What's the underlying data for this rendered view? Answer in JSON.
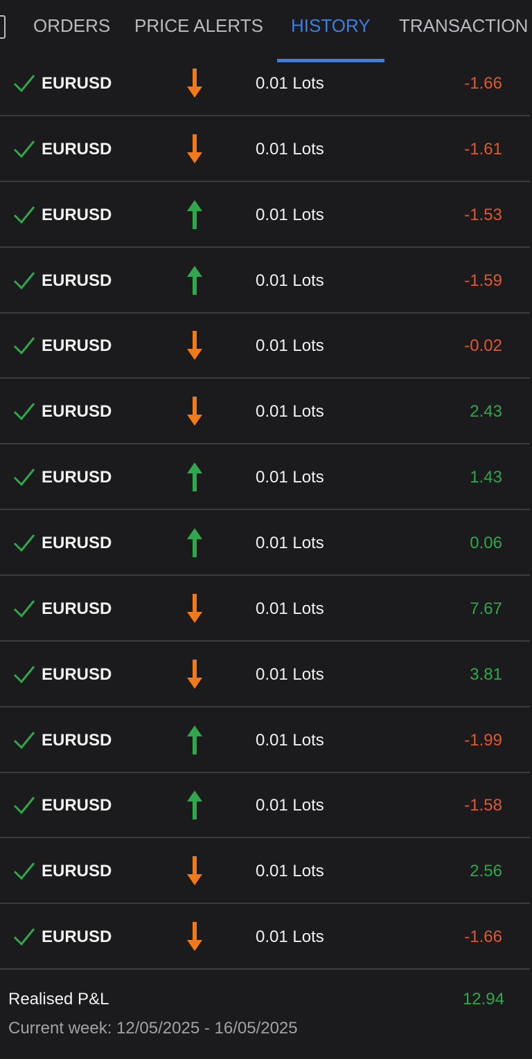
{
  "tabs": [
    {
      "label": "ORDERS",
      "active": false
    },
    {
      "label": "PRICE ALERTS",
      "active": false
    },
    {
      "label": "HISTORY",
      "active": true
    },
    {
      "label": "TRANSACTION",
      "active": false
    }
  ],
  "rows": [
    {
      "symbol": "EURUSD",
      "direction": "down",
      "lots": "0.01 Lots",
      "pnl": "-1.66"
    },
    {
      "symbol": "EURUSD",
      "direction": "down",
      "lots": "0.01 Lots",
      "pnl": "-1.61"
    },
    {
      "symbol": "EURUSD",
      "direction": "up",
      "lots": "0.01 Lots",
      "pnl": "-1.53"
    },
    {
      "symbol": "EURUSD",
      "direction": "up",
      "lots": "0.01 Lots",
      "pnl": "-1.59"
    },
    {
      "symbol": "EURUSD",
      "direction": "down",
      "lots": "0.01 Lots",
      "pnl": "-0.02"
    },
    {
      "symbol": "EURUSD",
      "direction": "down",
      "lots": "0.01 Lots",
      "pnl": "2.43"
    },
    {
      "symbol": "EURUSD",
      "direction": "up",
      "lots": "0.01 Lots",
      "pnl": "1.43"
    },
    {
      "symbol": "EURUSD",
      "direction": "up",
      "lots": "0.01 Lots",
      "pnl": "0.06"
    },
    {
      "symbol": "EURUSD",
      "direction": "down",
      "lots": "0.01 Lots",
      "pnl": "7.67"
    },
    {
      "symbol": "EURUSD",
      "direction": "down",
      "lots": "0.01 Lots",
      "pnl": "3.81"
    },
    {
      "symbol": "EURUSD",
      "direction": "up",
      "lots": "0.01 Lots",
      "pnl": "-1.99"
    },
    {
      "symbol": "EURUSD",
      "direction": "up",
      "lots": "0.01 Lots",
      "pnl": "-1.58"
    },
    {
      "symbol": "EURUSD",
      "direction": "down",
      "lots": "0.01 Lots",
      "pnl": "2.56"
    },
    {
      "symbol": "EURUSD",
      "direction": "down",
      "lots": "0.01 Lots",
      "pnl": "-1.66"
    }
  ],
  "summary": {
    "label": "Realised P&L",
    "value": "12.94",
    "period": "Current week: 12/05/2025 - 16/05/2025"
  }
}
